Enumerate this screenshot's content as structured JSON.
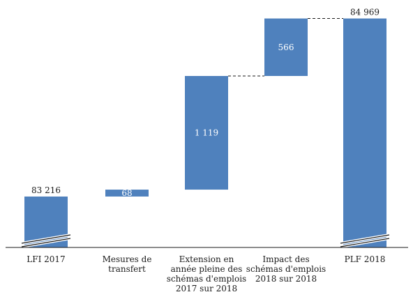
{
  "chart_data": {
    "type": "waterfall",
    "categories": [
      "LFI 2017",
      "Mesures de transfert",
      "Extension en année pleine des schémas d'emplois 2017 sur 2018",
      "Impact des schémas d'emplois 2018 sur 2018",
      "PLF 2018"
    ],
    "category_label_lines": [
      [
        "LFI 2017"
      ],
      [
        "Mesures de",
        "transfert"
      ],
      [
        "Extension en",
        "année pleine des",
        "schémas d'emplois",
        "2017 sur 2018"
      ],
      [
        "Impact des",
        "schémas d'emplois",
        "2018 sur 2018"
      ],
      [
        "PLF 2018"
      ]
    ],
    "bars": [
      {
        "kind": "total",
        "start": 0,
        "end": 83216,
        "label": "83 216",
        "label_position": "above"
      },
      {
        "kind": "delta",
        "start": 83216,
        "end": 83284,
        "label": "68",
        "label_position": "inside"
      },
      {
        "kind": "delta",
        "start": 83284,
        "end": 84403,
        "label": "1 119",
        "label_position": "inside"
      },
      {
        "kind": "delta",
        "start": 84403,
        "end": 84969,
        "label": "566",
        "label_position": "inside"
      },
      {
        "kind": "total",
        "start": 0,
        "end": 84969,
        "label": "84 969",
        "label_position": "above"
      }
    ],
    "connectors": [
      {
        "from": 2,
        "to": 3,
        "value": 84403
      },
      {
        "from": 3,
        "to": 4,
        "value": 84969
      }
    ],
    "axis_break": true,
    "broken_range": [
      0,
      82900
    ],
    "ylim": [
      82900,
      85000
    ],
    "bar_color": "#4f81bd",
    "grid": false,
    "legend": false
  }
}
